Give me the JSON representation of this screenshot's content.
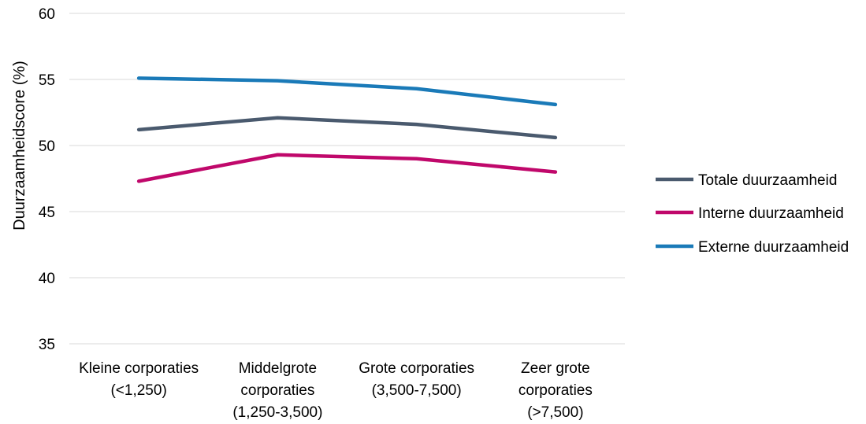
{
  "chart_data": {
    "type": "line",
    "ylabel": "Duurzaamheidscore (%)",
    "xlabel": "",
    "ylim": [
      35,
      60
    ],
    "yticks": [
      35,
      40,
      45,
      50,
      55,
      60
    ],
    "grid": true,
    "legend_position": "right",
    "categories": [
      [
        "Kleine corporaties",
        "(<1,250)"
      ],
      [
        "Middelgrote",
        "corporaties",
        "(1,250-3,500)"
      ],
      [
        "Grote corporaties",
        "(3,500-7,500)"
      ],
      [
        "Zeer grote",
        "corporaties",
        "(>7,500)"
      ]
    ],
    "series": [
      {
        "name": "Totale duurzaamheid",
        "color": "#4a5a6e",
        "values": [
          51.2,
          52.1,
          51.6,
          50.6
        ]
      },
      {
        "name": "Interne duurzaamheid",
        "color": "#c0086b",
        "values": [
          47.3,
          49.3,
          49.0,
          48.0
        ]
      },
      {
        "name": "Externe duurzaamheid",
        "color": "#1a7ab8",
        "values": [
          55.1,
          54.9,
          54.3,
          53.1
        ]
      }
    ]
  }
}
